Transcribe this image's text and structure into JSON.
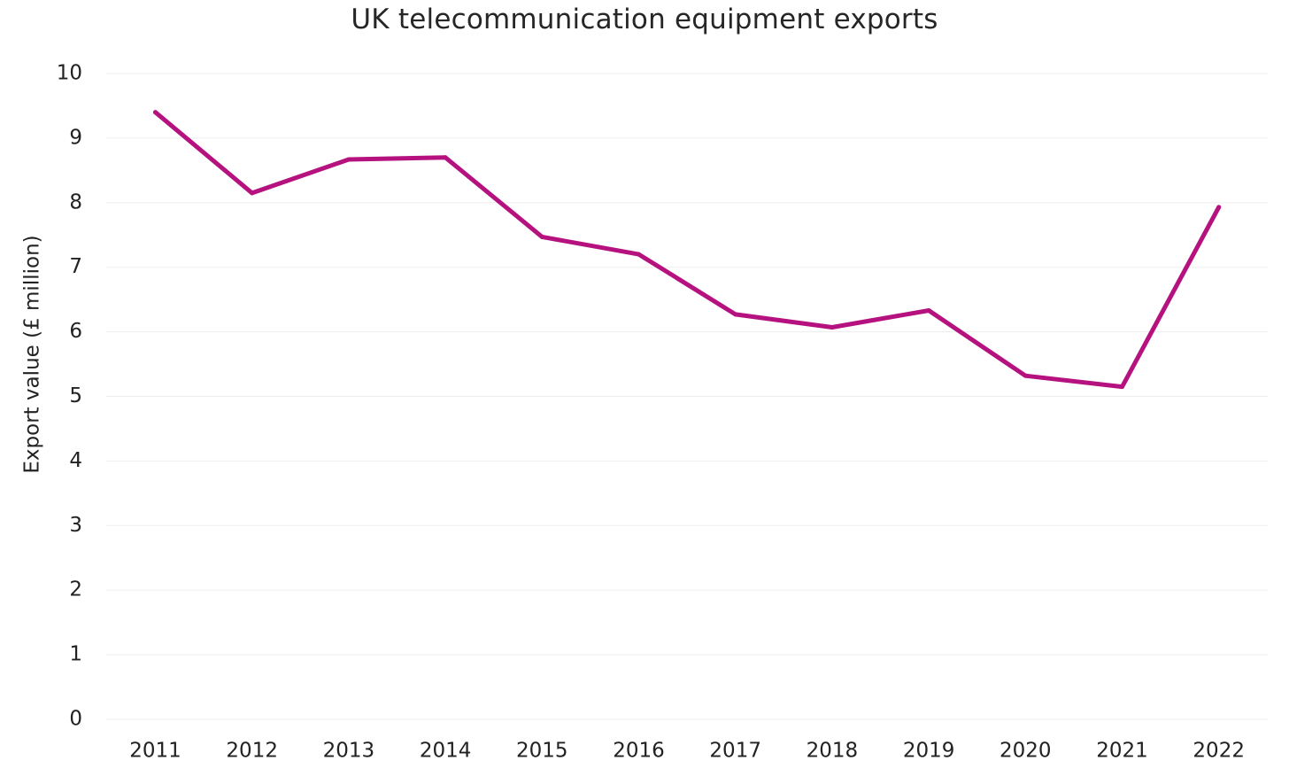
{
  "chart_data": {
    "type": "line",
    "title": "UK telecommunication equipment exports",
    "xlabel": "",
    "ylabel": "Export value (£ million)",
    "x": [
      "2011",
      "2012",
      "2013",
      "2014",
      "2015",
      "2016",
      "2017",
      "2018",
      "2019",
      "2020",
      "2021",
      "2022"
    ],
    "series": [
      {
        "values": [
          9.4,
          8.15,
          8.67,
          8.7,
          7.47,
          7.2,
          6.27,
          6.07,
          6.33,
          5.32,
          5.15,
          7.93
        ],
        "color": "#B5127F"
      }
    ],
    "yticks": [
      "0",
      "1",
      "2",
      "3",
      "4",
      "5",
      "6",
      "7",
      "8",
      "9",
      "10"
    ],
    "ylim": [
      0,
      10
    ],
    "grid": true,
    "legend": "none",
    "gridline_color": "#EDEDED"
  }
}
